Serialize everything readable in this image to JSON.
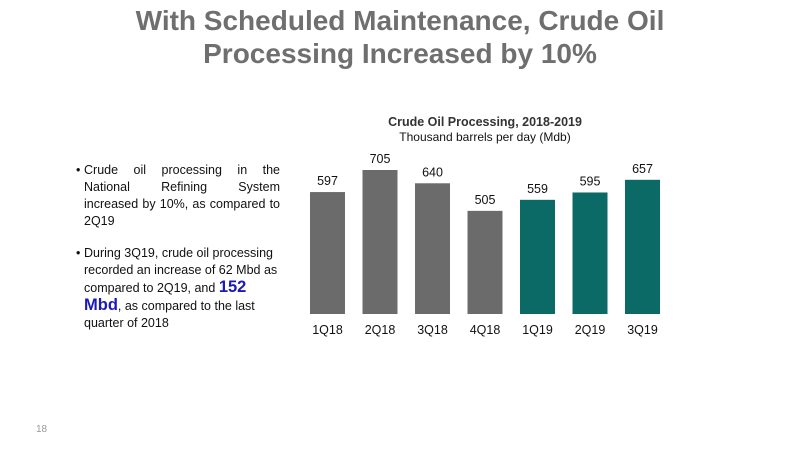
{
  "slide": {
    "title_line1": "With Scheduled Maintenance, Crude Oil",
    "title_line2": "Processing Increased by 10%",
    "page_number": "18"
  },
  "bullets": {
    "b1": "Crude oil processing in the National Refining System increased by 10%, as compared to 2Q19",
    "b2_part1": "During 3Q19, crude oil processing recorded an increase of 62 Mbd as compared to 2Q19, and ",
    "b2_highlight": "152 Mbd",
    "b2_part2": ", as compared to the last quarter of 2018"
  },
  "colors": {
    "title": "#6f6f6f",
    "bar_2018": "#6b6b6b",
    "bar_2019": "#0c6a66",
    "highlight": "#1a1ab8"
  },
  "chart_data": {
    "type": "bar",
    "title": "Crude Oil Processing, 2018-2019",
    "subtitle": "Thousand barrels per day (Mdb)",
    "categories": [
      "1Q18",
      "2Q18",
      "3Q18",
      "4Q18",
      "1Q19",
      "2Q19",
      "3Q19"
    ],
    "values": [
      597,
      705,
      640,
      505,
      559,
      595,
      657
    ],
    "bar_colors": [
      "#6b6b6b",
      "#6b6b6b",
      "#6b6b6b",
      "#6b6b6b",
      "#0c6a66",
      "#0c6a66",
      "#0c6a66"
    ],
    "ylim": [
      0,
      705
    ],
    "grid": false,
    "legend": "none"
  }
}
